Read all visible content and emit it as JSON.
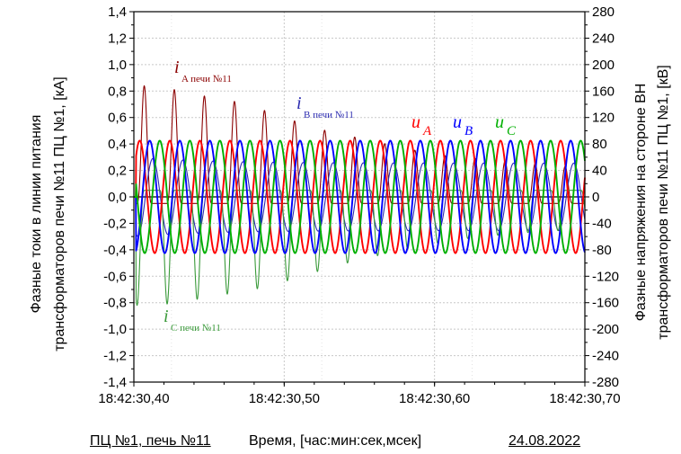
{
  "chart_data": {
    "type": "line",
    "x_axis": {
      "tick_labels": [
        "18:42:30,40",
        "18:42:30,50",
        "18:42:30,60",
        "18:42:30,70"
      ],
      "range_seconds": [
        0.4,
        0.7
      ],
      "grid": true
    },
    "y_left": {
      "label_line1": "Фазные токи в линии питания",
      "label_line2": "трансформаторов печи №11 ПЦ №1, [кА]",
      "range": [
        -1.4,
        1.4
      ],
      "tick_step": 0.2,
      "tick_labels": [
        "1,4",
        "1,2",
        "1,0",
        "0,8",
        "0,6",
        "0,4",
        "0,2",
        "0,0",
        "-0,2",
        "-0,4",
        "-0,6",
        "-0,8",
        "-1,0",
        "-1,2",
        "-1,4"
      ]
    },
    "y_right": {
      "label_line1": "Фазные напряжения на стороне ВН",
      "label_line2": "трансформаторов печи №11 ПЦ №1, [кВ]",
      "range": [
        -280,
        280
      ],
      "tick_step": 40,
      "tick_labels": [
        "280",
        "240",
        "200",
        "160",
        "120",
        "80",
        "40",
        "0",
        "-40",
        "-80",
        "-120",
        "-160",
        "-200",
        "-240",
        "-280"
      ]
    },
    "grid": true,
    "series": [
      {
        "name": "u_A",
        "axis": "right",
        "color": "#ff0000",
        "amplitude_kV": 85,
        "frequency_hz": 50,
        "phase_deg": 0
      },
      {
        "name": "u_B",
        "axis": "right",
        "color": "#0000ff",
        "amplitude_kV": 85,
        "frequency_hz": 50,
        "phase_deg": -120
      },
      {
        "name": "u_C",
        "axis": "right",
        "color": "#00b000",
        "amplitude_kV": 85,
        "frequency_hz": 50,
        "phase_deg": 120
      },
      {
        "name": "i_A печи №11",
        "axis": "left",
        "color": "#8b0000",
        "peak_kA": [
          0.89,
          0.86,
          0.81,
          0.77,
          0.7,
          0.62,
          0.55,
          0.5,
          0.45,
          0.4,
          0.36,
          0.34,
          0.32,
          0.3,
          0.28
        ]
      },
      {
        "name": "i_B печи №11",
        "axis": "left",
        "color": "#2b2bb0",
        "amplitude_kA": 0.3
      },
      {
        "name": "i_C печи №11",
        "axis": "left",
        "color": "#3a9a3a",
        "peak_kA": [
          -0.87,
          -0.85,
          -0.8,
          -0.77,
          -0.72,
          -0.65,
          -0.58,
          -0.52,
          -0.47,
          -0.42,
          -0.38,
          -0.35,
          -0.33,
          -0.31,
          -0.3
        ]
      }
    ],
    "annotations": {
      "iA": {
        "main": "i",
        "sub": "A печи №11"
      },
      "iB": {
        "main": "i",
        "sub": "B печи №11"
      },
      "iC": {
        "main": "i",
        "sub": "C печи №11"
      },
      "uA": {
        "main": "u",
        "sub": "A"
      },
      "uB": {
        "main": "u",
        "sub": "B"
      },
      "uC": {
        "main": "u",
        "sub": "C"
      }
    }
  },
  "footer": {
    "left": "ПЦ №1, печь №11",
    "center": "Время, [час:мин:сек,мсек]",
    "right": "24.08.2022"
  }
}
